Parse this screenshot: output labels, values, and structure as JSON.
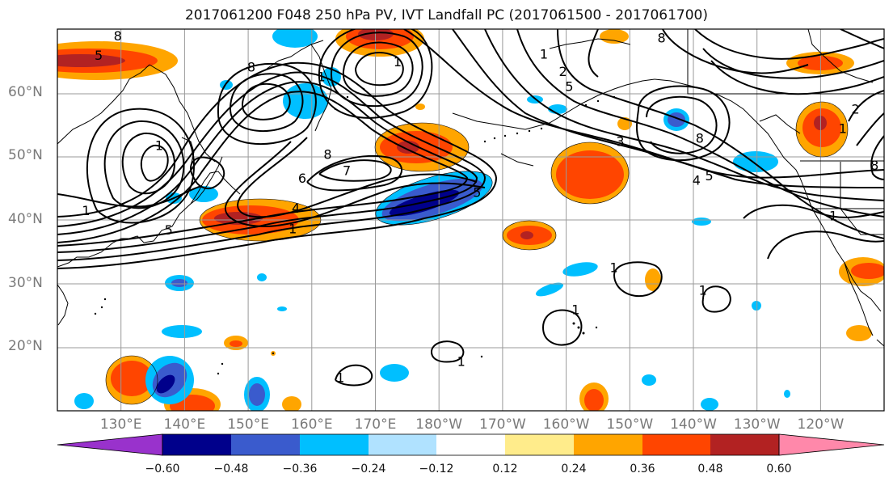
{
  "title": "2017061200 F048 250 hPa PV, IVT Landfall PC (2017061500 - 2017061700)",
  "lat_labels": [
    {
      "text": "60°N",
      "lat": 60
    },
    {
      "text": "50°N",
      "lat": 50
    },
    {
      "text": "40°N",
      "lat": 40
    },
    {
      "text": "30°N",
      "lat": 30
    },
    {
      "text": "20°N",
      "lat": 20
    }
  ],
  "lon_labels": [
    {
      "text": "130°E",
      "lon": 130
    },
    {
      "text": "140°E",
      "lon": 140
    },
    {
      "text": "150°E",
      "lon": 150
    },
    {
      "text": "160°E",
      "lon": 160
    },
    {
      "text": "170°E",
      "lon": 170
    },
    {
      "text": "180°W",
      "lon": 180
    },
    {
      "text": "170°W",
      "lon": 190
    },
    {
      "text": "160°W",
      "lon": 200
    },
    {
      "text": "150°W",
      "lon": 210
    },
    {
      "text": "140°W",
      "lon": 220
    },
    {
      "text": "130°W",
      "lon": 230
    },
    {
      "text": "120°W",
      "lon": 240
    }
  ],
  "map_extent": {
    "lon_min": 120,
    "lon_max": 250,
    "lat_min": 10,
    "lat_max": 69
  },
  "colorbar": {
    "colors": [
      "#9932cc",
      "#00008b",
      "#3a5bcd",
      "#00bfff",
      "#b0e2ff",
      "#ffffff",
      "#ffec8b",
      "#ffa500",
      "#ff4500",
      "#b22222",
      "#ff88aa"
    ],
    "ticks": [
      "−0.60",
      "−0.48",
      "−0.36",
      "−0.24",
      "−0.12",
      "0.12",
      "0.24",
      "0.36",
      "0.48",
      "0.60"
    ]
  },
  "contour_labels": [
    {
      "text": "8",
      "lon": 129.5,
      "lat": 67.8
    },
    {
      "text": "5",
      "lon": 126.5,
      "lat": 64.8
    },
    {
      "text": "1",
      "lon": 124.5,
      "lat": 40.8
    },
    {
      "text": "5",
      "lon": 137.5,
      "lat": 37.8
    },
    {
      "text": "4",
      "lon": 157.5,
      "lat": 41.2
    },
    {
      "text": "1",
      "lon": 157.0,
      "lat": 38.0
    },
    {
      "text": "6",
      "lon": 158.5,
      "lat": 45.8
    },
    {
      "text": "7",
      "lon": 165.5,
      "lat": 47.0
    },
    {
      "text": "8",
      "lon": 162.5,
      "lat": 49.5
    },
    {
      "text": "1",
      "lon": 136.0,
      "lat": 50.9
    },
    {
      "text": "8",
      "lon": 150.5,
      "lat": 63.0
    },
    {
      "text": "1",
      "lon": 161.5,
      "lat": 61.5
    },
    {
      "text": "1",
      "lon": 173.5,
      "lat": 63.8
    },
    {
      "text": "5",
      "lon": 186.0,
      "lat": 43.6
    },
    {
      "text": "1",
      "lon": 196.5,
      "lat": 65.0
    },
    {
      "text": "2",
      "lon": 199.5,
      "lat": 62.3
    },
    {
      "text": "5",
      "lon": 200.5,
      "lat": 60.0
    },
    {
      "text": "8",
      "lon": 215.0,
      "lat": 67.5
    },
    {
      "text": "8",
      "lon": 221.0,
      "lat": 52.0
    },
    {
      "text": "3",
      "lon": 208.5,
      "lat": 51.5
    },
    {
      "text": "4",
      "lon": 220.5,
      "lat": 45.5
    },
    {
      "text": "5",
      "lon": 222.5,
      "lat": 46.2
    },
    {
      "text": "2",
      "lon": 245.5,
      "lat": 56.5
    },
    {
      "text": "1",
      "lon": 243.5,
      "lat": 53.5
    },
    {
      "text": "8",
      "lon": 248.5,
      "lat": 47.8
    },
    {
      "text": "1",
      "lon": 242.0,
      "lat": 40.0
    },
    {
      "text": "1",
      "lon": 207.5,
      "lat": 32.0
    },
    {
      "text": "1",
      "lon": 201.5,
      "lat": 25.5
    },
    {
      "text": "1",
      "lon": 221.5,
      "lat": 28.5
    },
    {
      "text": "1",
      "lon": 183.5,
      "lat": 17.5
    },
    {
      "text": "1",
      "lon": 164.5,
      "lat": 15.0
    }
  ]
}
